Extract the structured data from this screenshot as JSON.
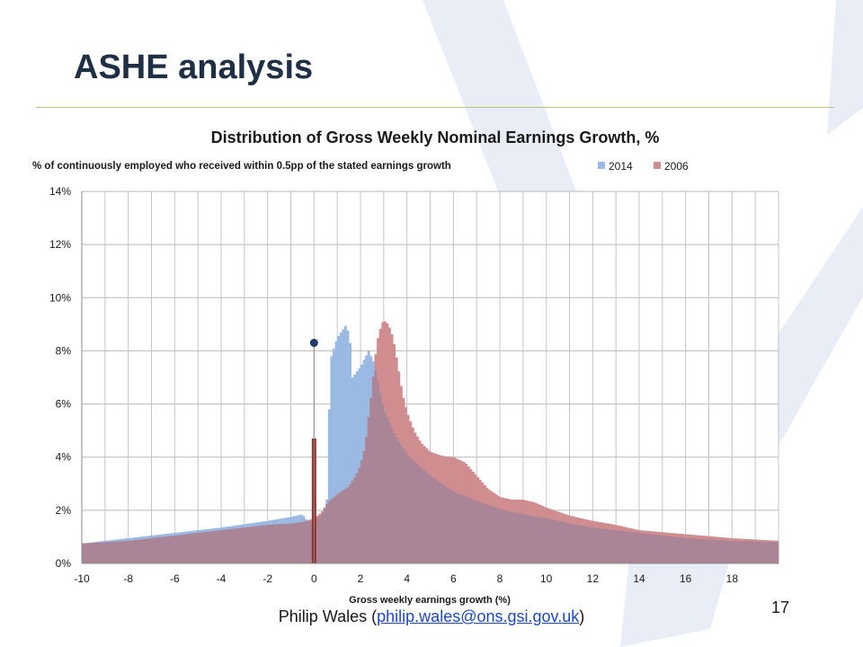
{
  "slide": {
    "title": "ASHE analysis",
    "footer_prefix": "Philip Wales (",
    "footer_email": "philip.wales@ons.gsi.gov.uk",
    "footer_suffix": ")",
    "page_number": "17"
  },
  "colors": {
    "series_2014": "#9ab9e3",
    "series_2006": "#cf8d8f",
    "overlap": "#a98597",
    "marker_line": "#94322f",
    "marker_dot": "#1f3a6b",
    "title_dark": "#1f2f46"
  },
  "chart_data": {
    "type": "bar",
    "title": "Distribution of Gross Weekly Nominal Earnings Growth, %",
    "subtitle": "% of continuously employed who received within 0.5pp of the stated earnings growth",
    "xlabel": "Gross weekly earnings growth (%)",
    "ylabel": "",
    "xlim": [
      -10,
      20
    ],
    "ylim": [
      0,
      14
    ],
    "x_ticks": [
      -10,
      -8,
      -6,
      -4,
      -2,
      0,
      2,
      4,
      6,
      8,
      10,
      12,
      14,
      16,
      18
    ],
    "y_ticks": [
      0,
      2,
      4,
      6,
      8,
      10,
      12,
      14
    ],
    "y_tick_labels": [
      "0%",
      "2%",
      "4%",
      "6%",
      "8%",
      "10%",
      "12%",
      "14%"
    ],
    "bin_width": 0.1,
    "grid": true,
    "legend_position": "top-right",
    "series": [
      {
        "name": "2014",
        "points": [
          [
            -10,
            0.75
          ],
          [
            -8,
            0.95
          ],
          [
            -7,
            1.05
          ],
          [
            -6,
            1.15
          ],
          [
            -5,
            1.25
          ],
          [
            -4,
            1.35
          ],
          [
            -2,
            1.6
          ],
          [
            -1,
            1.75
          ],
          [
            -0.5,
            1.85
          ],
          [
            -0.3,
            1.6
          ],
          [
            0,
            1.55
          ],
          [
            0.4,
            1.9
          ],
          [
            0.55,
            2.4
          ],
          [
            0.65,
            5.8
          ],
          [
            0.75,
            7.8
          ],
          [
            1,
            8.5
          ],
          [
            1.4,
            9.0
          ],
          [
            1.55,
            8.3
          ],
          [
            1.65,
            7.0
          ],
          [
            2.0,
            7.4
          ],
          [
            2.35,
            8.0
          ],
          [
            2.6,
            7.5
          ],
          [
            2.8,
            6.6
          ],
          [
            3.0,
            5.8
          ],
          [
            3.5,
            4.8
          ],
          [
            4,
            4.1
          ],
          [
            5,
            3.3
          ],
          [
            6,
            2.7
          ],
          [
            7,
            2.35
          ],
          [
            8,
            2.05
          ],
          [
            9,
            1.85
          ],
          [
            10,
            1.7
          ],
          [
            11,
            1.5
          ],
          [
            12,
            1.35
          ],
          [
            14,
            1.15
          ],
          [
            15,
            1.05
          ],
          [
            16,
            0.95
          ],
          [
            18,
            0.85
          ],
          [
            20,
            0.8
          ]
        ]
      },
      {
        "name": "2006",
        "points": [
          [
            -10,
            0.75
          ],
          [
            -8,
            0.85
          ],
          [
            -6,
            1.05
          ],
          [
            -4,
            1.25
          ],
          [
            -2,
            1.45
          ],
          [
            -1,
            1.5
          ],
          [
            -0.5,
            1.55
          ],
          [
            0,
            1.7
          ],
          [
            0.3,
            1.9
          ],
          [
            0.6,
            2.3
          ],
          [
            1.0,
            2.6
          ],
          [
            1.5,
            2.9
          ],
          [
            1.8,
            3.3
          ],
          [
            2.0,
            3.7
          ],
          [
            2.2,
            4.4
          ],
          [
            2.5,
            6.6
          ],
          [
            2.7,
            8.3
          ],
          [
            2.9,
            9.0
          ],
          [
            3.0,
            9.15
          ],
          [
            3.2,
            9.0
          ],
          [
            3.4,
            8.5
          ],
          [
            3.6,
            7.5
          ],
          [
            3.8,
            6.4
          ],
          [
            4.0,
            5.7
          ],
          [
            4.3,
            5.0
          ],
          [
            4.6,
            4.55
          ],
          [
            5,
            4.2
          ],
          [
            5.5,
            4.05
          ],
          [
            6,
            4.0
          ],
          [
            6.5,
            3.8
          ],
          [
            7,
            3.3
          ],
          [
            7.5,
            2.8
          ],
          [
            8,
            2.5
          ],
          [
            8.5,
            2.4
          ],
          [
            9,
            2.4
          ],
          [
            9.5,
            2.3
          ],
          [
            10,
            2.1
          ],
          [
            11,
            1.8
          ],
          [
            12,
            1.6
          ],
          [
            13,
            1.45
          ],
          [
            14,
            1.25
          ],
          [
            16,
            1.1
          ],
          [
            18,
            0.95
          ],
          [
            20,
            0.85
          ]
        ]
      }
    ],
    "annotations": [
      {
        "type": "vertical-line",
        "x": 0,
        "y_from": 0,
        "y_to": 4.7,
        "color": "#94322f"
      },
      {
        "type": "point",
        "x": 0,
        "y": 8.3,
        "color": "#1f3a6b"
      }
    ]
  }
}
